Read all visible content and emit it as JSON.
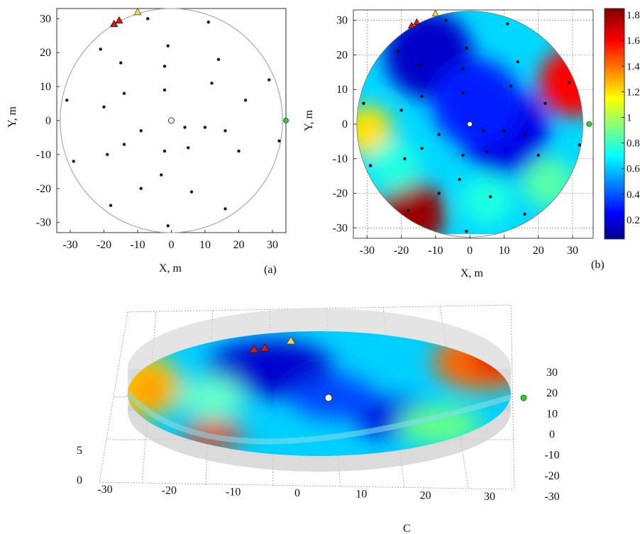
{
  "chart_data": [
    {
      "type": "scatter",
      "panel_label": "(a)",
      "xlabel": "X, m",
      "ylabel": "Y, m",
      "xlim": [
        -34,
        34
      ],
      "ylim": [
        -33,
        33
      ],
      "xticks": [
        -30,
        -20,
        -10,
        0,
        10,
        20,
        30
      ],
      "yticks": [
        -30,
        -20,
        -10,
        0,
        10,
        20,
        30
      ],
      "boundary_radius": 33,
      "points": [
        {
          "x": -7,
          "y": 30
        },
        {
          "x": 11,
          "y": 29
        },
        {
          "x": -21,
          "y": 21
        },
        {
          "x": -1,
          "y": 22
        },
        {
          "x": -15,
          "y": 17
        },
        {
          "x": 14,
          "y": 18
        },
        {
          "x": -2,
          "y": 16
        },
        {
          "x": 29,
          "y": 12
        },
        {
          "x": 12,
          "y": 11
        },
        {
          "x": -14,
          "y": 8
        },
        {
          "x": -2,
          "y": 9
        },
        {
          "x": -31,
          "y": 6
        },
        {
          "x": 22,
          "y": 6
        },
        {
          "x": -20,
          "y": 4
        },
        {
          "x": 4,
          "y": -2
        },
        {
          "x": 10,
          "y": -2
        },
        {
          "x": 16,
          "y": -3
        },
        {
          "x": -9,
          "y": -3
        },
        {
          "x": 32,
          "y": -6
        },
        {
          "x": -14,
          "y": -7
        },
        {
          "x": 5,
          "y": -8
        },
        {
          "x": -2,
          "y": -9
        },
        {
          "x": 20,
          "y": -9
        },
        {
          "x": -19,
          "y": -10
        },
        {
          "x": -29,
          "y": -12
        },
        {
          "x": -3,
          "y": -16
        },
        {
          "x": -9,
          "y": -20
        },
        {
          "x": 6,
          "y": -21
        },
        {
          "x": -18,
          "y": -25
        },
        {
          "x": 16,
          "y": -26
        },
        {
          "x": -1,
          "y": -31
        }
      ],
      "center_marker": {
        "x": 0,
        "y": 0
      },
      "green_marker": {
        "x": 34,
        "y": 0
      },
      "red_markers": [
        {
          "x": -17,
          "y": 28.5
        },
        {
          "x": -15.5,
          "y": 29.5
        }
      ],
      "yellow_marker": {
        "x": -10,
        "y": 32
      }
    },
    {
      "type": "heatmap",
      "panel_label": "(b)",
      "xlabel": "X, m",
      "ylabel": "Y, m",
      "xlim": [
        -34,
        36
      ],
      "ylim": [
        -33,
        33
      ],
      "xticks": [
        -30,
        -20,
        -10,
        0,
        10,
        20,
        30
      ],
      "yticks": [
        -30,
        -20,
        -10,
        0,
        10,
        20,
        30
      ],
      "colorbar": {
        "min": 0.05,
        "max": 1.85,
        "ticks": [
          "0.2",
          "0.4",
          "0.6",
          "0.8",
          "1",
          "1.2",
          "1.4",
          "1.6",
          "1.8"
        ]
      },
      "hot_spots": [
        {
          "x": 30,
          "y": 12,
          "value": 1.6
        },
        {
          "x": -17,
          "y": -26,
          "value": 1.8
        },
        {
          "x": -30,
          "y": -2,
          "value": 1.2
        },
        {
          "x": 23,
          "y": -17,
          "value": 0.85
        },
        {
          "x": 5,
          "y": -22,
          "value": 0.75
        },
        {
          "x": -22,
          "y": -12,
          "value": 0.75
        }
      ],
      "cold_spots": [
        {
          "x": -12,
          "y": 20,
          "value": 0.15
        },
        {
          "x": 10,
          "y": -2,
          "value": 0.2
        },
        {
          "x": 2,
          "y": 6,
          "value": 0.3
        }
      ]
    },
    {
      "type": "surface",
      "panel_label": "C",
      "x_ticks": [
        "-30",
        "-20",
        "-10",
        "0",
        "10",
        "20",
        "30"
      ],
      "y_ticks": [
        "30",
        "20",
        "10",
        "0",
        "-10",
        "-20",
        "-30"
      ],
      "z_ticks": [
        "0",
        "5"
      ]
    }
  ]
}
